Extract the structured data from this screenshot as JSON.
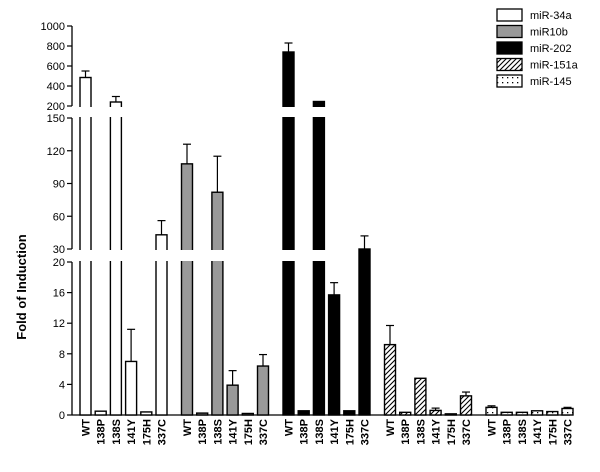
{
  "chart_data": {
    "type": "bar",
    "title": "",
    "xlabel": "",
    "ylabel": "Fold of Induction",
    "y_axis": {
      "type": "broken",
      "segments": [
        {
          "range": [
            0,
            20
          ],
          "ticks": [
            0,
            4,
            8,
            12,
            16,
            20
          ]
        },
        {
          "range": [
            30,
            150
          ],
          "ticks": [
            30,
            60,
            90,
            120,
            150
          ]
        },
        {
          "range": [
            200,
            1000
          ],
          "ticks": [
            200,
            400,
            600,
            800,
            1000
          ]
        }
      ]
    },
    "categories": [
      "WT",
      "138P",
      "138S",
      "141Y",
      "175H",
      "337C"
    ],
    "legend_position": "top-right",
    "colors": {
      "miR-34a": "#ffffff",
      "miR10b": "#999999",
      "miR-202": "#000000",
      "miR-151a": "#ffffff",
      "miR-145": "#ffffff"
    },
    "series": [
      {
        "name": "miR-34a",
        "pattern": "open",
        "values": [
          485,
          0.5,
          240,
          7.0,
          0.4,
          43
        ],
        "errors": [
          65,
          0.05,
          55,
          4.2,
          0.05,
          13
        ]
      },
      {
        "name": "miR10b",
        "pattern": "gray",
        "values": [
          108,
          0.25,
          82,
          3.9,
          0.2,
          6.4
        ],
        "errors": [
          18,
          0.05,
          33,
          1.9,
          0.05,
          1.5
        ]
      },
      {
        "name": "miR-202",
        "pattern": "solid",
        "values": [
          740,
          0.55,
          245,
          15.7,
          0.55,
          30
        ],
        "errors": [
          90,
          0.05,
          10,
          1.6,
          0.1,
          12
        ]
      },
      {
        "name": "miR-151a",
        "pattern": "hatch",
        "values": [
          9.2,
          0.35,
          4.8,
          0.6,
          0.15,
          2.5
        ],
        "errors": [
          2.5,
          0.05,
          0.05,
          0.3,
          0.05,
          0.5
        ]
      },
      {
        "name": "miR-145",
        "pattern": "dotted",
        "values": [
          1.0,
          0.35,
          0.35,
          0.55,
          0.45,
          0.85
        ],
        "errors": [
          0.2,
          0.05,
          0.05,
          0.1,
          0.05,
          0.15
        ]
      }
    ]
  }
}
